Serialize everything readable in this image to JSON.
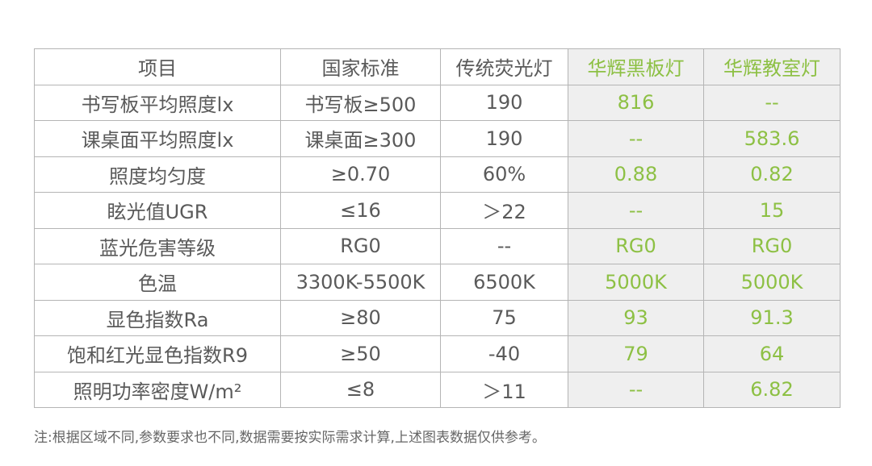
{
  "colors": {
    "accent_text": "#8dc044",
    "highlight_bg": "#efefef",
    "text": "#5a5a5a",
    "border": "#b5b5b5"
  },
  "table": {
    "headers": [
      "项目",
      "国家标准",
      "传统荧光灯",
      "华辉黑板灯",
      "华辉教室灯"
    ],
    "rows": [
      [
        "书写板平均照度lx",
        "书写板≥500",
        "190",
        "816",
        "--"
      ],
      [
        "课桌面平均照度lx",
        "课桌面≥300",
        "190",
        "--",
        "583.6"
      ],
      [
        "照度均匀度",
        "≥0.70",
        "60%",
        "0.88",
        "0.82"
      ],
      [
        "眩光值UGR",
        "≤16",
        "＞22",
        "--",
        "15"
      ],
      [
        "蓝光危害等级",
        "RG0",
        "--",
        "RG0",
        "RG0"
      ],
      [
        "色温",
        "3300K-5500K",
        "6500K",
        "5000K",
        "5000K"
      ],
      [
        "显色指数Ra",
        "≥80",
        "75",
        "93",
        "91.3"
      ],
      [
        "饱和红光显色指数R9",
        "≥50",
        "-40",
        "79",
        "64"
      ],
      [
        "照明功率密度W/m²",
        "≤8",
        "＞11",
        "--",
        "6.82"
      ]
    ]
  },
  "note": "注:根据区域不同,参数要求也不同,数据需要按实际需求计算,上述图表数据仅供参考。"
}
